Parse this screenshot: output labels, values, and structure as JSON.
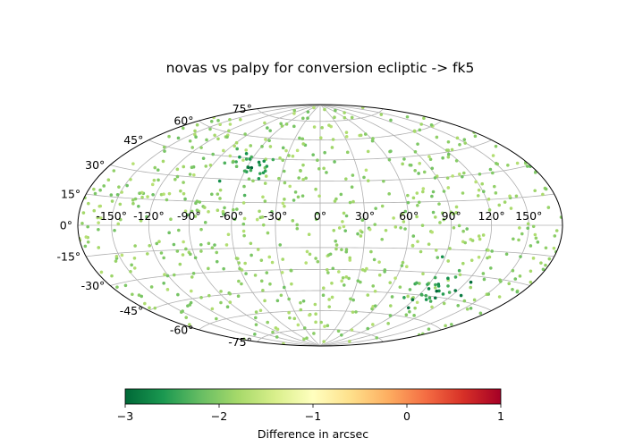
{
  "chart_data": {
    "type": "scatter",
    "projection": "aitoff-hammer (all-sky ellipse)",
    "title": "novas vs palpy for conversion ecliptic -> fk5",
    "x_tick_labels": [
      "-150°",
      "-120°",
      "-90°",
      "-60°",
      "-30°",
      "0°",
      "30°",
      "60°",
      "90°",
      "120°",
      "150°"
    ],
    "x_tick_values": [
      -150,
      -120,
      -90,
      -60,
      -30,
      0,
      30,
      60,
      90,
      120,
      150
    ],
    "y_tick_labels": [
      "-75°",
      "-60°",
      "-45°",
      "-30°",
      "-15°",
      "0°",
      "15°",
      "30°",
      "45°",
      "60°",
      "75°"
    ],
    "y_tick_values": [
      -75,
      -60,
      -45,
      -30,
      -15,
      0,
      15,
      30,
      45,
      60,
      75
    ],
    "xlim": [
      -180,
      180
    ],
    "ylim": [
      -90,
      90
    ],
    "grid": true,
    "colormap": "RdYlGn_r",
    "colormap_stops": [
      "#006837",
      "#1a9850",
      "#66bd63",
      "#a6d96a",
      "#d9ef8b",
      "#ffffbf",
      "#fee08b",
      "#fdae61",
      "#f46d43",
      "#d73027",
      "#a50026"
    ],
    "colorbar": {
      "label": "Difference in arcsec",
      "range": [
        -3,
        1
      ],
      "tick_values": [
        -3,
        -2,
        -1,
        0,
        1
      ],
      "tick_labels": [
        "−3",
        "−2",
        "−1",
        "0",
        "1"
      ]
    },
    "point_groups": [
      {
        "region": "background, all sky",
        "count": 700,
        "value_typical": -1.9
      },
      {
        "center_lon": -60,
        "center_lat": 40,
        "count": 25,
        "value_typical": -2.3
      },
      {
        "center_lon": 105,
        "center_lat": -40,
        "count": 30,
        "value_typical": -2.3
      }
    ]
  }
}
